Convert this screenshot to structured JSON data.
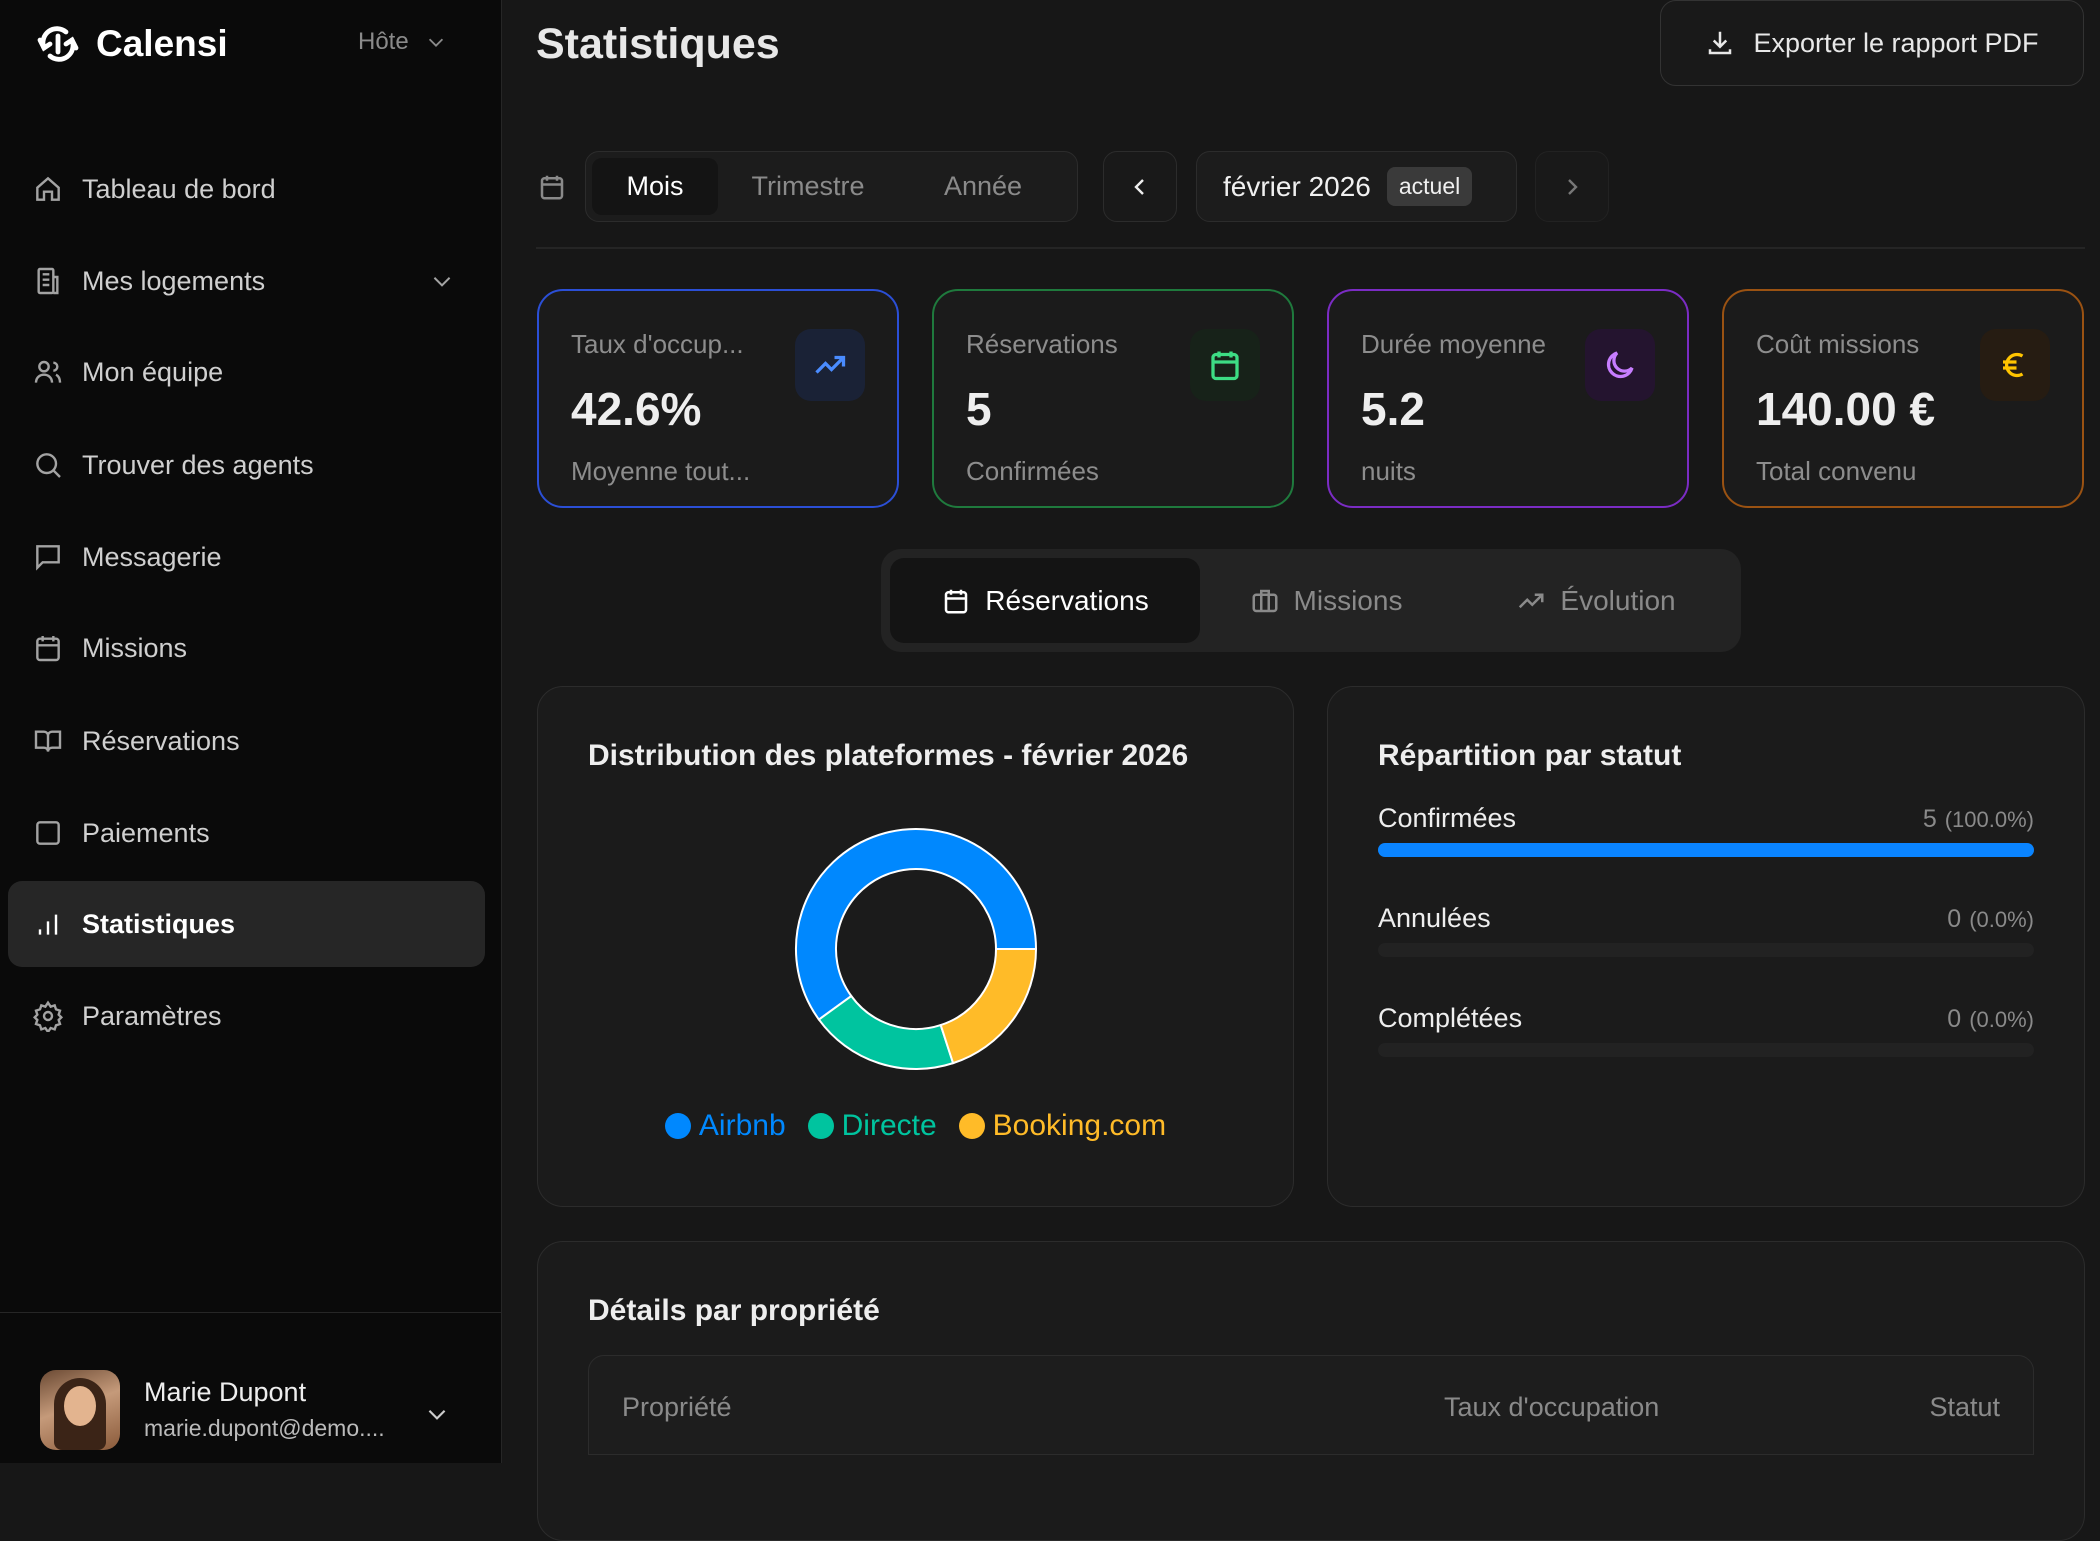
{
  "app": {
    "name": "Calensi",
    "role": "Hôte"
  },
  "sidebar": {
    "items": [
      {
        "label": "Tableau de bord",
        "icon": "home-icon"
      },
      {
        "label": "Mes logements",
        "icon": "building-icon"
      },
      {
        "label": "Mon équipe",
        "icon": "users-icon"
      },
      {
        "label": "Trouver des agents",
        "icon": "search-icon"
      },
      {
        "label": "Messagerie",
        "icon": "message-icon"
      },
      {
        "label": "Missions",
        "icon": "calendar-icon"
      },
      {
        "label": "Réservations",
        "icon": "book-icon"
      },
      {
        "label": "Paiements",
        "icon": "square-icon"
      },
      {
        "label": "Statistiques",
        "icon": "bar-chart-icon"
      },
      {
        "label": "Paramètres",
        "icon": "gear-icon"
      }
    ]
  },
  "user": {
    "name": "Marie Dupont",
    "email": "marie.dupont@demo...."
  },
  "header": {
    "title": "Statistiques",
    "export_label": "Exporter le rapport PDF"
  },
  "period": {
    "options": [
      "Mois",
      "Trimestre",
      "Année"
    ],
    "selected": "Mois",
    "current": "février 2026",
    "badge": "actuel"
  },
  "kpis": [
    {
      "label": "Taux d'occup...",
      "value": "42.6%",
      "sub": "Moyenne tout...",
      "color": "#2b4fd6"
    },
    {
      "label": "Réservations",
      "value": "5",
      "sub": "Confirmées",
      "color": "#1f7a3d"
    },
    {
      "label": "Durée moyenne",
      "value": "5.2",
      "sub": "nuits",
      "color": "#7b2cc4"
    },
    {
      "label": "Coût missions",
      "value": "140.00 €",
      "sub": "Total convenu",
      "color": "#9a5212"
    }
  ],
  "tabs": [
    "Réservations",
    "Missions",
    "Évolution"
  ],
  "chart_data": {
    "type": "pie",
    "title": "Distribution des plateformes - février 2026",
    "categories": [
      "Airbnb",
      "Directe",
      "Booking.com"
    ],
    "values": [
      3,
      1,
      1
    ],
    "colors": [
      "#0088FE",
      "#00C49F",
      "#FFBB28"
    ]
  },
  "status": {
    "title": "Répartition par statut",
    "rows": [
      {
        "label": "Confirmées",
        "count": "5",
        "pct": "(100.0%)",
        "fraction": 1
      },
      {
        "label": "Annulées",
        "count": "0",
        "pct": "(0.0%)",
        "fraction": 0
      },
      {
        "label": "Complétées",
        "count": "0",
        "pct": "(0.0%)",
        "fraction": 0
      }
    ]
  },
  "details": {
    "title": "Détails par propriété",
    "columns": [
      "Propriété",
      "Taux d'occupation",
      "Statut"
    ]
  }
}
